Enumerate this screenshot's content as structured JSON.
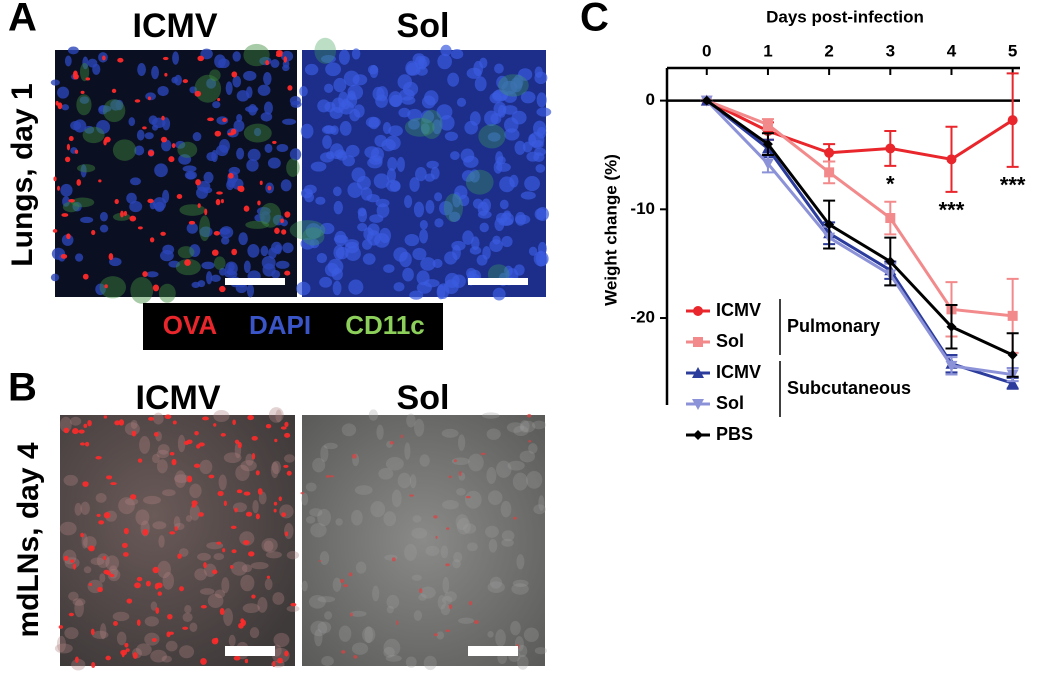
{
  "panel_a": {
    "letter": "A",
    "left_title": "ICMV",
    "right_title": "Sol",
    "side_label": "Lungs, day 1",
    "stain_legend": [
      "OVA",
      "DAPI",
      "CD11c"
    ]
  },
  "panel_b": {
    "letter": "B",
    "left_title": "ICMV",
    "right_title": "Sol",
    "side_label": "mdLNs, day 4"
  },
  "chart_data": {
    "type": "line",
    "letter": "C",
    "x_label": "Days post-infection",
    "y_label": "Weight change (%)",
    "x": [
      0,
      1,
      2,
      3,
      4,
      5
    ],
    "xlim": [
      -0.65,
      5.12
    ],
    "xticks": [
      0,
      1,
      2,
      3,
      4,
      5
    ],
    "ylim": [
      -28,
      3
    ],
    "yticks": [
      0,
      -10,
      -20
    ],
    "series": [
      {
        "name": "ICMV",
        "color": "#e8262b",
        "marker": "circle",
        "values": [
          0,
          -2.8,
          -4.8,
          -4.4,
          -5.4,
          -1.8
        ],
        "errors": [
          0,
          0.8,
          0.8,
          1.6,
          3,
          4.3
        ]
      },
      {
        "name": "Sol",
        "color": "#f28a8c",
        "marker": "square",
        "values": [
          0,
          -2.2,
          -6.6,
          -10.8,
          -19.2,
          -19.8
        ],
        "errors": [
          0,
          0.5,
          1,
          1.5,
          2.5,
          3.4
        ]
      },
      {
        "name": "ICMV",
        "color": "#2c3c9c",
        "marker": "triangle",
        "values": [
          0,
          -4.4,
          -12.2,
          -15.6,
          -24.2,
          -26.0
        ],
        "errors": [
          0,
          0.8,
          1,
          0.8,
          0.8,
          0.5
        ]
      },
      {
        "name": "Sol",
        "color": "#8c92d8",
        "marker": "triangle-down",
        "values": [
          0,
          -5.8,
          -12.6,
          -16,
          -24.4,
          -25.2
        ],
        "errors": [
          0,
          0.8,
          1,
          1,
          0.8,
          0.6
        ]
      },
      {
        "name": "PBS",
        "color": "#000000",
        "marker": "diamond",
        "values": [
          0,
          -4.0,
          -11.4,
          -14.8,
          -20.8,
          -23.4
        ],
        "errors": [
          0,
          1,
          2.2,
          2.2,
          2,
          2
        ]
      }
    ],
    "legend_groups": [
      "Pulmonary",
      "Subcutaneous"
    ],
    "annotations": [
      {
        "label": "*",
        "x": 3
      },
      {
        "label": "***",
        "x": 4
      },
      {
        "label": "***",
        "x": 5
      }
    ]
  }
}
